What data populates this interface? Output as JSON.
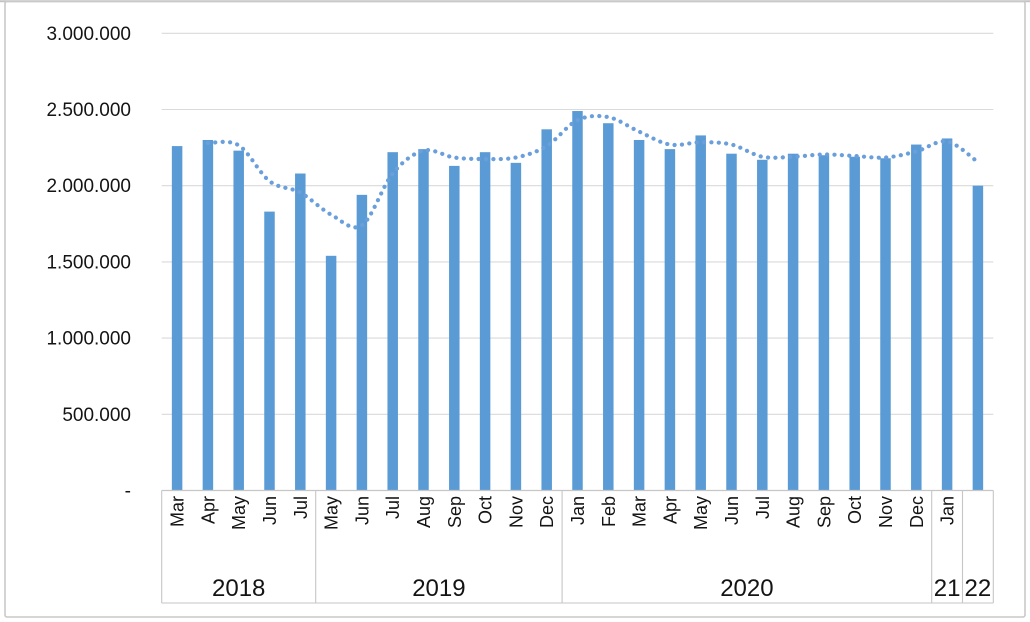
{
  "chart_data": {
    "type": "bar",
    "xlabel": "",
    "ylabel": "",
    "ylim": [
      0,
      3000000
    ],
    "grid": true,
    "legend": false,
    "number_format_example": "2.500.000",
    "y_ticks": {
      "values": [
        3000000,
        2500000,
        2000000,
        1500000,
        1000000,
        500000,
        0
      ],
      "labels": [
        "3.000.000",
        "2.500.000",
        "2.000.000",
        "1.500.000",
        "1.000.000",
        "500.000",
        "-"
      ]
    },
    "groups": [
      {
        "label": "2018",
        "months": [
          "Mar",
          "Apr",
          "May",
          "Jun",
          "Jul"
        ]
      },
      {
        "label": "2019",
        "months": [
          "May",
          "Jun",
          "Jul",
          "Aug",
          "Sep",
          "Oct",
          "Nov",
          "Dec"
        ]
      },
      {
        "label": "2020",
        "months": [
          "Jan",
          "Feb",
          "Mar",
          "Apr",
          "May",
          "Jun",
          "Jul",
          "Aug",
          "Sep",
          "Oct",
          "Nov",
          "Dec"
        ]
      },
      {
        "label": "21",
        "months": [
          "Jan"
        ]
      },
      {
        "label": "22",
        "months": [
          ""
        ]
      }
    ],
    "series": [
      {
        "name": "monthly-values-bars",
        "values": [
          2260000,
          2300000,
          2230000,
          1830000,
          2080000,
          1540000,
          1940000,
          2220000,
          2240000,
          2130000,
          2220000,
          2150000,
          2370000,
          2490000,
          2410000,
          2300000,
          2240000,
          2330000,
          2210000,
          2170000,
          2210000,
          2200000,
          2190000,
          2180000,
          2270000,
          2310000,
          2000000
        ]
      },
      {
        "name": "moving-average-dotted-trend",
        "values": [
          null,
          2280000,
          2265000,
          2030000,
          1955000,
          1810000,
          1740000,
          2080000,
          2230000,
          2185000,
          2175000,
          2185000,
          2260000,
          2430000,
          2450000,
          2355000,
          2270000,
          2285000,
          2270000,
          2190000,
          2190000,
          2205000,
          2195000,
          2185000,
          2225000,
          2290000,
          2155000
        ]
      }
    ],
    "colors": {
      "bar": "#5B9BD5",
      "trend": "#6A9FDB",
      "gridline": "#DADADA",
      "axis": "#C6C6C6",
      "frame": "#C9C9C9",
      "text": "#141414"
    }
  }
}
